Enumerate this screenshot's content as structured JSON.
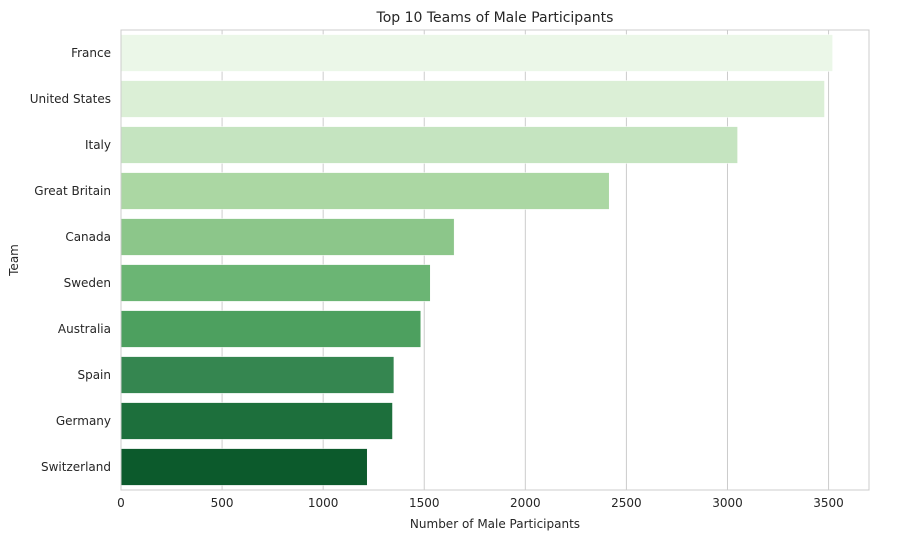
{
  "chart_data": {
    "type": "bar",
    "orientation": "horizontal",
    "title": "Top 10 Teams of Male Participants",
    "xlabel": "Number of Male Participants",
    "ylabel": "Team",
    "categories": [
      "France",
      "United States",
      "Italy",
      "Great Britain",
      "Canada",
      "Sweden",
      "Australia",
      "Spain",
      "Germany",
      "Switzerland"
    ],
    "values": [
      3520,
      3480,
      3050,
      2415,
      1648,
      1530,
      1483,
      1350,
      1343,
      1218
    ],
    "xlim": [
      0,
      3700
    ],
    "xticks": [
      0,
      500,
      1000,
      1500,
      2000,
      2500,
      3000,
      3500
    ],
    "grid": "vertical",
    "palette": "Greens",
    "colors": [
      "#ebf7e8",
      "#dbefd6",
      "#c5e4c0",
      "#abd7a3",
      "#8cc68a",
      "#6bb574",
      "#4da05f",
      "#358650",
      "#1d6f3c",
      "#0c5a2c"
    ]
  }
}
